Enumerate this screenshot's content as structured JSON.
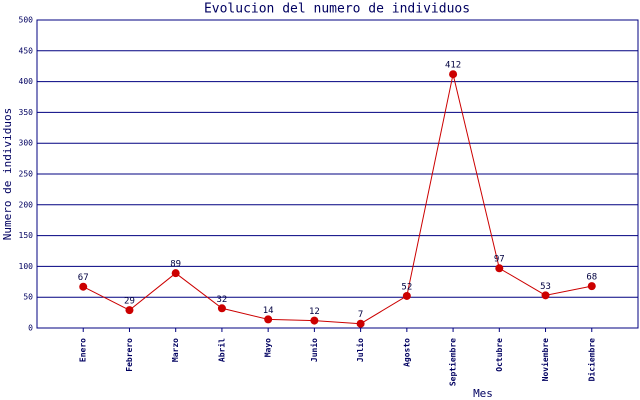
{
  "chart_data": {
    "type": "line",
    "title": "Evolucion del numero de individuos",
    "x_label": "Mes",
    "y_label": "Numero de individuos",
    "categories": [
      "Enero",
      "Febrero",
      "Marzo",
      "Abril",
      "Mayo",
      "Junio",
      "Julio",
      "Agosto",
      "Septiembre",
      "Octubre",
      "Noviembre",
      "Diciembre"
    ],
    "series": [
      {
        "name": "Individuos",
        "color": "#cc0000",
        "values": [
          67,
          29,
          89,
          32,
          14,
          12,
          7,
          52,
          412,
          97,
          53,
          68
        ]
      }
    ],
    "ylim": [
      0,
      500
    ],
    "yticks": [
      0,
      50,
      100,
      150,
      200,
      250,
      300,
      350,
      400,
      450,
      500
    ],
    "grid": true
  }
}
